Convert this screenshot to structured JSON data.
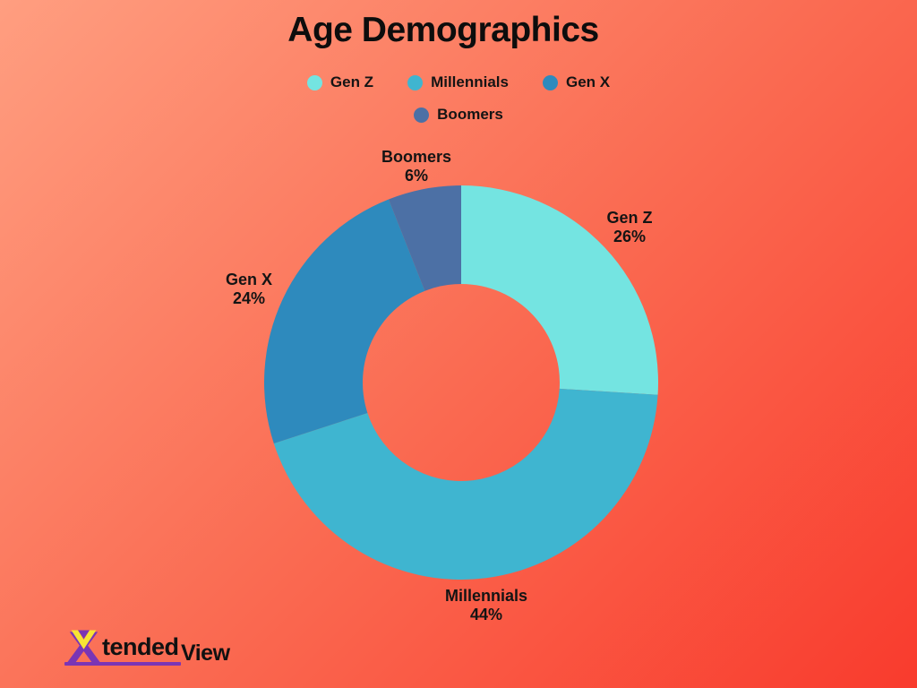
{
  "title": "Age Demographics",
  "chart_data": {
    "type": "pie",
    "subtype": "donut",
    "title": "Age Demographics",
    "legend_position": "top",
    "start_angle_deg": 0,
    "direction": "clockwise",
    "slices": [
      {
        "label": "Gen Z",
        "value": 26,
        "pct_text": "26%",
        "color": "#74E4E1"
      },
      {
        "label": "Millennials",
        "value": 44,
        "pct_text": "44%",
        "color": "#3FB5D0"
      },
      {
        "label": "Gen X",
        "value": 24,
        "pct_text": "24%",
        "color": "#2E8ABD"
      },
      {
        "label": "Boomers",
        "value": 6,
        "pct_text": "6%",
        "color": "#4C70A5"
      }
    ],
    "legend": [
      "Gen Z",
      "Millennials",
      "Gen X",
      "Boomers"
    ]
  },
  "logo": {
    "text_main": "tended",
    "text_secondary": "View"
  },
  "colors": {
    "background_gradient_start": "#FF9E80",
    "background_gradient_end": "#F93B2D",
    "text": "#141414",
    "logo_purple": "#7A35B5",
    "logo_yellow": "#F7E434"
  }
}
